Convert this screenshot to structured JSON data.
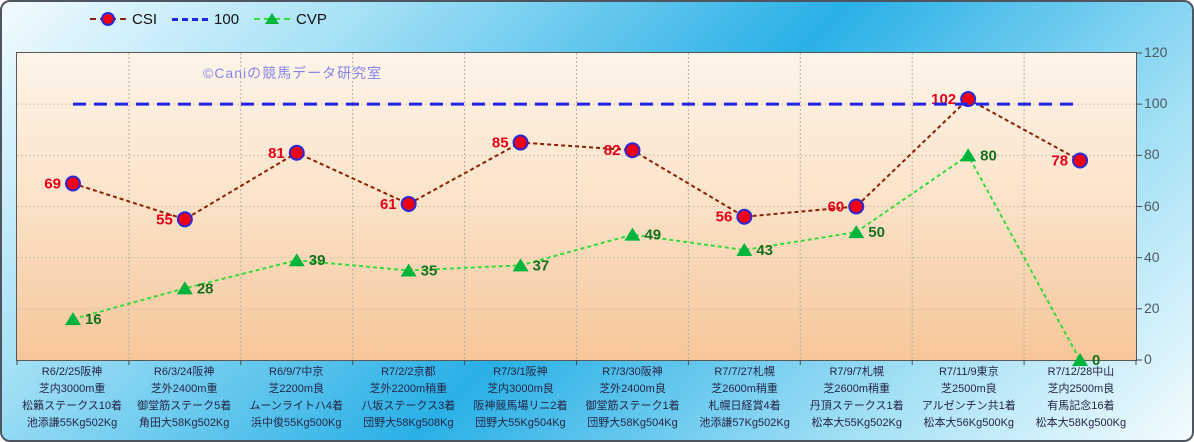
{
  "chart_data": {
    "type": "line",
    "title": "",
    "watermark": "©Caniの競馬データ研究室",
    "legend_position": "top",
    "grid": true,
    "ylim": [
      0,
      120
    ],
    "yticks": [
      0,
      20,
      40,
      60,
      80,
      100,
      120
    ],
    "categories": [
      [
        "R6/2/25阪神",
        "芝内3000m重",
        "松籟ステークス10着",
        "池添謙55Kg502Kg"
      ],
      [
        "R6/3/24阪神",
        "芝外2400m重",
        "御堂筋ステーク5着",
        "角田大58Kg502Kg"
      ],
      [
        "R6/9/7中京",
        "芝2200m良",
        "ムーンライトハ4着",
        "浜中俊55Kg500Kg"
      ],
      [
        "R7/2/2京都",
        "芝外2200m稍重",
        "八坂ステークス3着",
        "団野大58Kg508Kg"
      ],
      [
        "R7/3/1阪神",
        "芝内3000m良",
        "阪神競馬場リニ2着",
        "団野大55Kg504Kg"
      ],
      [
        "R7/3/30阪神",
        "芝外2400m良",
        "御堂筋ステーク1着",
        "団野大58Kg504Kg"
      ],
      [
        "R7/7/27札幌",
        "芝2600m稍重",
        "札幌日経賞4着",
        "池添謙57Kg502Kg"
      ],
      [
        "R7/9/7札幌",
        "芝2600m稍重",
        "丹頂ステークス1着",
        "松本大55Kg502Kg"
      ],
      [
        "R7/11/9東京",
        "芝2500m良",
        "アルゼンチン共1着",
        "松本大56Kg500Kg"
      ],
      [
        "R7/12/28中山",
        "芝内2500m良",
        "有馬記念16着",
        "松本大58Kg500Kg"
      ]
    ],
    "series": [
      {
        "name": "CSI",
        "values": [
          69,
          55,
          81,
          61,
          85,
          82,
          56,
          60,
          102,
          78
        ],
        "marker": "circle",
        "show_labels": true,
        "label_side": "left",
        "color": "#8b2104",
        "dash": "4 3",
        "width": 2,
        "marker_fill": "#ee0011",
        "marker_stroke": "#2b2bd5",
        "label_color": "#e8001a"
      },
      {
        "name": "100",
        "values": [
          100,
          100,
          100,
          100,
          100,
          100,
          100,
          100,
          100,
          100
        ],
        "marker": "none",
        "show_labels": false,
        "color": "#2323e6",
        "dash": "13 8",
        "width": 3
      },
      {
        "name": "CVP",
        "values": [
          16,
          28,
          39,
          35,
          37,
          49,
          43,
          50,
          80,
          0
        ],
        "marker": "triangle",
        "show_labels": true,
        "label_side": "right",
        "color": "#38da40",
        "dash": "4 3",
        "width": 2,
        "marker_fill": "#00b43c",
        "label_color": "#17701e"
      }
    ],
    "palette": {
      "frame_background_light": "#f2fbfe",
      "frame_background_cyan": "#29b0e6",
      "plot_background_top": "#fdf4e9",
      "plot_background_bottom": "#f6c699",
      "gridline": "#beb5a6",
      "axis_text": "#4d5a64",
      "category_text": "#252547",
      "watermark_color": "#8585e8"
    }
  }
}
